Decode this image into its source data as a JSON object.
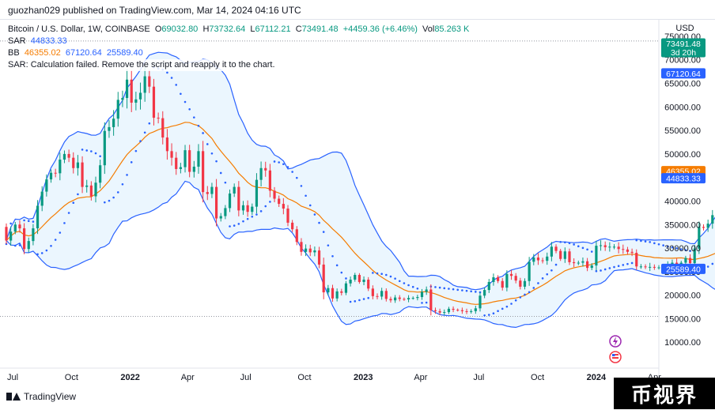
{
  "publisher_line": "guozhan029 published on TradingView.com, Mar 14, 2024 04:16 UTC",
  "legend": {
    "symbol": "Bitcoin / U.S. Dollar, 1W, COINBASE",
    "open_label": "O",
    "open": "69032.80",
    "high_label": "H",
    "high": "73732.64",
    "low_label": "L",
    "low": "67112.21",
    "close_label": "C",
    "close": "73491.48",
    "change": "+4459.36 (+6.46%)",
    "vol_label": "Vol",
    "vol": "85.263 K",
    "sar_label": "SAR",
    "sar_value": "44833.33",
    "bb_label": "BB",
    "bb_basis": "46355.02",
    "bb_upper": "67120.64",
    "bb_lower": "25589.40",
    "sar_error": "SAR: Calculation failed. Remove the script and reapply it to the chart."
  },
  "currency": "USD",
  "brand": "TradingView",
  "watermark": "币视界",
  "colors": {
    "up": "#089981",
    "down": "#f23645",
    "bb_band": "#2962ff",
    "bb_basis": "#f57c00",
    "sar": "#2962ff",
    "bb_fill": "#e3f2fd"
  },
  "icons": [
    "lightning-icon",
    "us-flag-icon"
  ],
  "chart_data": {
    "type": "candlestick",
    "timeframe": "1W",
    "x_start": "2021-06-21",
    "x_end": "2024-04-08",
    "ylim": [
      5000,
      76000
    ],
    "y_ticks": [
      10000,
      15000,
      20000,
      25000,
      30000,
      35000,
      40000,
      45000,
      50000,
      55000,
      60000,
      65000,
      70000,
      75000
    ],
    "x_ticks": [
      {
        "label": "Jul",
        "date": "2021-07-01",
        "bold": false
      },
      {
        "label": "Oct",
        "date": "2021-10-01",
        "bold": false
      },
      {
        "label": "2022",
        "date": "2022-01-01",
        "bold": true
      },
      {
        "label": "Apr",
        "date": "2022-04-01",
        "bold": false
      },
      {
        "label": "Jul",
        "date": "2022-07-01",
        "bold": false
      },
      {
        "label": "Oct",
        "date": "2022-10-01",
        "bold": false
      },
      {
        "label": "2023",
        "date": "2023-01-01",
        "bold": true
      },
      {
        "label": "Apr",
        "date": "2023-04-01",
        "bold": false
      },
      {
        "label": "Jul",
        "date": "2023-07-01",
        "bold": false
      },
      {
        "label": "Oct",
        "date": "2023-10-01",
        "bold": false
      },
      {
        "label": "2024",
        "date": "2024-01-01",
        "bold": true
      },
      {
        "label": "Apr",
        "date": "2024-04-01",
        "bold": false
      }
    ],
    "price_labels": [
      {
        "text": "73491.48",
        "sub": "3d 20h",
        "value": 73491.48,
        "color": "#089981"
      },
      {
        "text": "67120.64",
        "value": 67120.64,
        "color": "#2962ff"
      },
      {
        "text": "46355.02",
        "value": 46355.02,
        "color": "#f57c00"
      },
      {
        "text": "44833.33",
        "value": 44833.33,
        "color": "#2962ff"
      },
      {
        "text": "25589.40",
        "value": 25589.4,
        "color": "#2962ff"
      }
    ],
    "hlines": [
      74000,
      15500
    ],
    "candles_start": "2021-06-21",
    "closes": [
      31600,
      33500,
      35000,
      34200,
      29800,
      31500,
      34200,
      39000,
      42000,
      44600,
      46000,
      45900,
      48800,
      50000,
      49200,
      47000,
      48200,
      43000,
      43300,
      41000,
      43900,
      47600,
      54900,
      55700,
      57500,
      61500,
      61900,
      65800,
      60900,
      61600,
      63000,
      66500,
      64300,
      57700,
      57600,
      53500,
      50600,
      49200,
      46800,
      47200,
      50800,
      46200,
      47300,
      50600,
      41900,
      41500,
      43000,
      36300,
      36800,
      38500,
      41600,
      43000,
      38000,
      39100,
      37700,
      38800,
      44500,
      47000,
      46500,
      42200,
      40500,
      39400,
      38400,
      35400,
      34000,
      31300,
      29200,
      29900,
      29100,
      29500,
      26500,
      20600,
      21500,
      19300,
      20800,
      20500,
      22500,
      23300,
      24300,
      22800,
      23300,
      21400,
      19800,
      19700,
      20900,
      19200,
      18900,
      19500,
      19200,
      19100,
      19400,
      19400,
      19600,
      20700,
      21200,
      16800,
      16600,
      16300,
      16400,
      17100,
      16900,
      16800,
      16600,
      16500,
      16600,
      17200,
      19900,
      21100,
      22800,
      23800,
      23000,
      21600,
      24500,
      24100,
      23100,
      21800,
      23000,
      27100,
      28000,
      27400,
      27300,
      28200,
      30300,
      29400,
      27700,
      29300,
      27000,
      26800,
      26900,
      27200,
      25800,
      26300,
      30500,
      30600,
      30200,
      30300,
      30300,
      29800,
      29700,
      29200,
      29000,
      26100,
      26100,
      26000,
      26000,
      25900,
      25900,
      25800,
      26600,
      26900,
      26600,
      26900,
      27900,
      26800,
      29900,
      34500,
      34300,
      35200,
      37000,
      37400,
      37700,
      37800,
      39000,
      41500,
      44000,
      42000,
      43700,
      42900,
      42500,
      44200,
      41800,
      41600,
      42200,
      43100,
      48300,
      51800,
      51600,
      51700,
      62400,
      68400,
      69000,
      73491.48
    ],
    "bb_basis_note": "20-week moving average of closes",
    "series": [
      {
        "name": "BB",
        "values_note": "upper 67120.64, basis 46355.02, lower 25589.40 (latest)"
      },
      {
        "name": "SAR",
        "latest": 44833.33
      }
    ]
  }
}
